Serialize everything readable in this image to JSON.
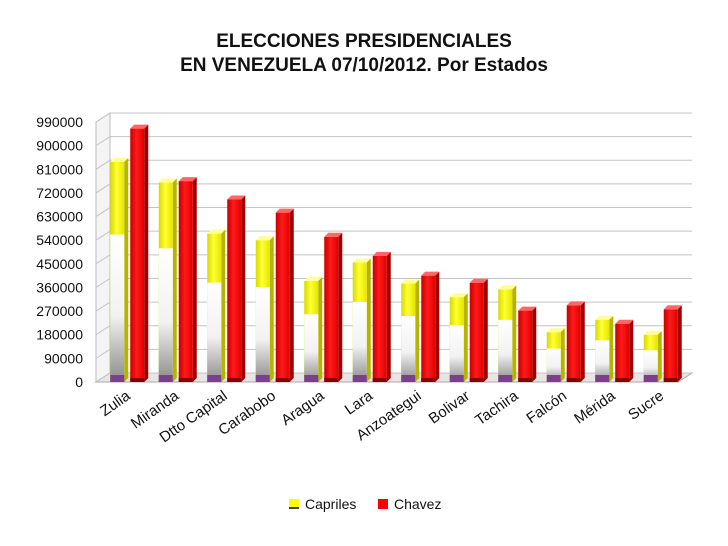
{
  "chart_data": {
    "type": "bar",
    "title_lines": [
      "ELECCIONES PRESIDENCIALES",
      "EN VENEZUELA 07/10/2012. Por Estados"
    ],
    "categories": [
      "Zulia",
      "Miranda",
      "Dtto Capital",
      "Carabobo",
      "Aragua",
      "Lara",
      "Anzoategui",
      "Bolivar",
      "Tachira",
      "Falcón",
      "Mérida",
      "Sucre"
    ],
    "series": [
      {
        "name": "Capriles",
        "color": "#ffff00",
        "values": [
          838000,
          760000,
          565000,
          540000,
          385000,
          455000,
          375000,
          323000,
          353000,
          190000,
          237000,
          180000
        ]
      },
      {
        "name": "Chavez",
        "color": "#ff0000",
        "values": [
          965000,
          765000,
          695000,
          645000,
          553000,
          480000,
          405000,
          378000,
          272000,
          292000,
          222000,
          277000
        ]
      }
    ],
    "y_ticks": [
      0,
      90000,
      180000,
      270000,
      360000,
      450000,
      540000,
      630000,
      720000,
      810000,
      900000,
      990000
    ],
    "ylim": [
      0,
      990000
    ],
    "grid": true,
    "legend_position": "bottom"
  }
}
